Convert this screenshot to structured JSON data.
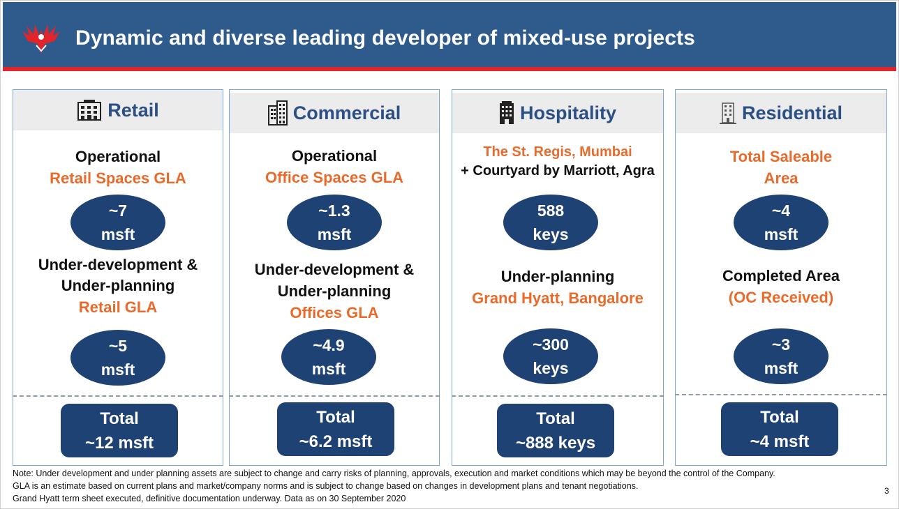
{
  "title": "Dynamic and diverse leading developer of mixed-use projects",
  "colors": {
    "header_bg": "#2e5a8c",
    "accent_red": "#e2242b",
    "orange": "#e86b2c",
    "navy": "#1f4275",
    "heading_blue": "#2c4f84"
  },
  "logo": {
    "icon": "phoenix-logo-icon"
  },
  "cards": {
    "retail": {
      "heading": "Retail",
      "icon": "building-icon",
      "line1": "Operational",
      "line2": "Retail Spaces GLA",
      "oval1": [
        "~7",
        "msft"
      ],
      "line3": "Under-development &",
      "line4": "Under-planning",
      "line5": "Retail GLA",
      "oval2": [
        "~5",
        "msft"
      ],
      "total": [
        "Total",
        "~12 msft"
      ]
    },
    "commercial": {
      "heading": "Commercial",
      "icon": "office-tower-icon",
      "line1": "Operational",
      "line2": "Office Spaces GLA",
      "oval1": [
        "~1.3",
        "msft"
      ],
      "line3": "Under-development &",
      "line4": "Under-planning",
      "line5": "Offices GLA",
      "oval2": [
        "~4.9",
        "msft"
      ],
      "total": [
        "Total",
        "~6.2 msft"
      ]
    },
    "hospitality": {
      "heading": "Hospitality",
      "icon": "hotel-icon",
      "line1": "The St. Regis, Mumbai",
      "line2": "+ Courtyard by Marriott,  Agra",
      "oval1": [
        "588",
        "keys"
      ],
      "line3": "Under-planning",
      "line4": "Grand Hyatt, Bangalore",
      "oval2": [
        "~300",
        "keys"
      ],
      "total": [
        "Total",
        "~888 keys"
      ]
    },
    "residential": {
      "heading": "Residential",
      "icon": "apartment-icon",
      "line1": "Total Saleable",
      "line2": "Area",
      "oval1": [
        "~4",
        "msft"
      ],
      "line3": "Completed Area",
      "line4": "(OC Received)",
      "oval2": [
        "~3",
        "msft"
      ],
      "total": [
        "Total",
        "~4 msft"
      ]
    }
  },
  "notes": [
    "Note: Under development and under planning assets are subject to change and carry risks of planning, approvals, execution and market conditions which may be beyond the control of the Company.",
    "GLA is an estimate based on current plans and market/company norms and is subject to change based on changes in development  plans and tenant negotiations.",
    "Grand Hyatt term sheet executed, definitive documentation underway. Data as on 30 September 2020"
  ],
  "page_number": "3"
}
